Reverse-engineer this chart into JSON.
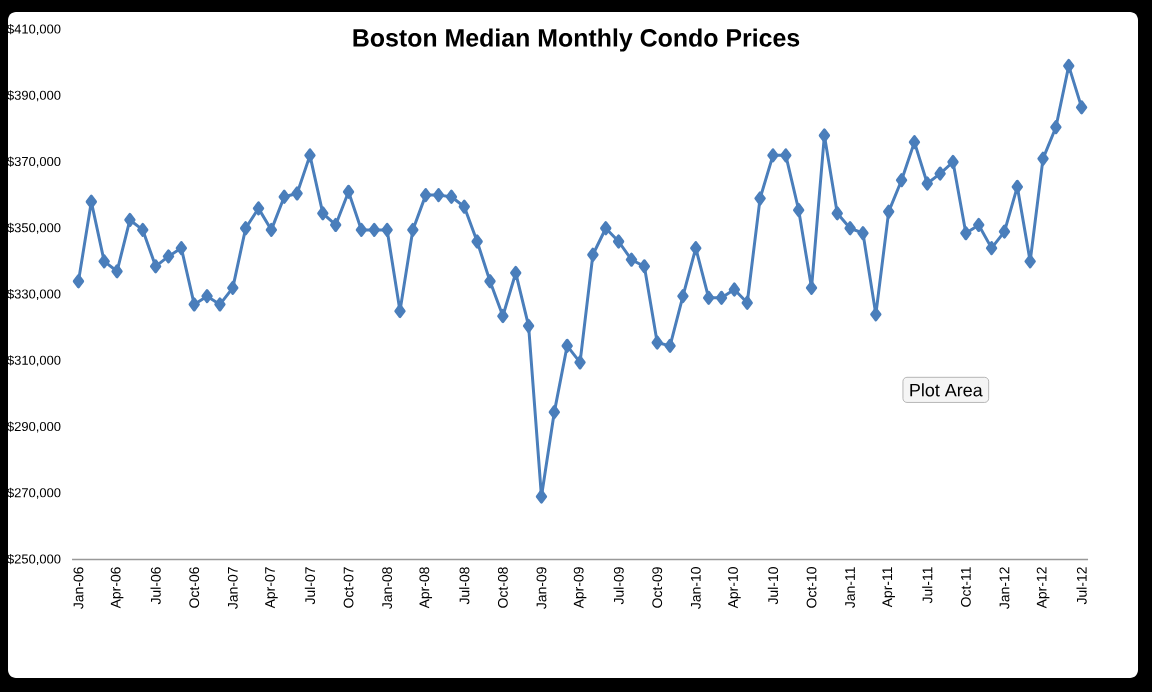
{
  "chart_data": {
    "type": "line",
    "title": "Boston Median Monthly Condo Prices",
    "categories": [
      "Jan-06",
      null,
      null,
      "Apr-06",
      null,
      null,
      "Jul-06",
      null,
      null,
      "Oct-06",
      null,
      null,
      "Jan-07",
      null,
      null,
      "Apr-07",
      null,
      null,
      "Jul-07",
      null,
      null,
      "Oct-07",
      null,
      null,
      "Jan-08",
      null,
      null,
      "Apr-08",
      null,
      null,
      "Jul-08",
      null,
      null,
      "Oct-08",
      null,
      null,
      "Jan-09",
      null,
      null,
      "Apr-09",
      null,
      null,
      "Jul-09",
      null,
      null,
      "Oct-09",
      null,
      null,
      "Jan-10",
      null,
      null,
      "Apr-10",
      null,
      null,
      "Jul-10",
      null,
      null,
      "Oct-10",
      null,
      null,
      "Jan-11",
      null,
      null,
      "Apr-11",
      null,
      null,
      "Jul-11",
      null,
      null,
      "Oct-11",
      null,
      null,
      "Jan-12",
      null,
      null,
      "Apr-12",
      null,
      null,
      "Jul-12"
    ],
    "values": [
      334000,
      358000,
      340000,
      337000,
      352500,
      349500,
      338500,
      341500,
      344000,
      327000,
      329500,
      327000,
      332000,
      350000,
      356000,
      349500,
      359500,
      360500,
      372000,
      354500,
      351000,
      361000,
      349500,
      349500,
      349500,
      325000,
      349500,
      360000,
      360000,
      359500,
      356500,
      346000,
      334000,
      323500,
      336500,
      320500,
      269000,
      294500,
      314500,
      309500,
      342000,
      350000,
      346000,
      340500,
      338500,
      315500,
      314500,
      329500,
      344000,
      329000,
      329000,
      331500,
      327500,
      359000,
      372000,
      372000,
      355500,
      332000,
      378000,
      354500,
      350000,
      348500,
      324000,
      355000,
      364500,
      376000,
      363500,
      366500,
      370000,
      348500,
      351000,
      344000,
      349000,
      362500,
      340000,
      371000,
      380500,
      399000,
      386500
    ],
    "color": "#4a7ebb",
    "marker": "diamond",
    "line_style": "solid",
    "ylim": [
      250000,
      410000
    ],
    "yticks": [
      {
        "value": 250000,
        "label": "$250,000"
      },
      {
        "value": 270000,
        "label": "$270,000"
      },
      {
        "value": 290000,
        "label": "$290,000"
      },
      {
        "value": 310000,
        "label": "$310,000"
      },
      {
        "value": 330000,
        "label": "$330,000"
      },
      {
        "value": 350000,
        "label": "$350,000"
      },
      {
        "value": 370000,
        "label": "$370,000"
      },
      {
        "value": 390000,
        "label": "$390,000"
      },
      {
        "value": 410000,
        "label": "$410,000"
      }
    ],
    "annotations": [
      "Plot Area"
    ]
  }
}
